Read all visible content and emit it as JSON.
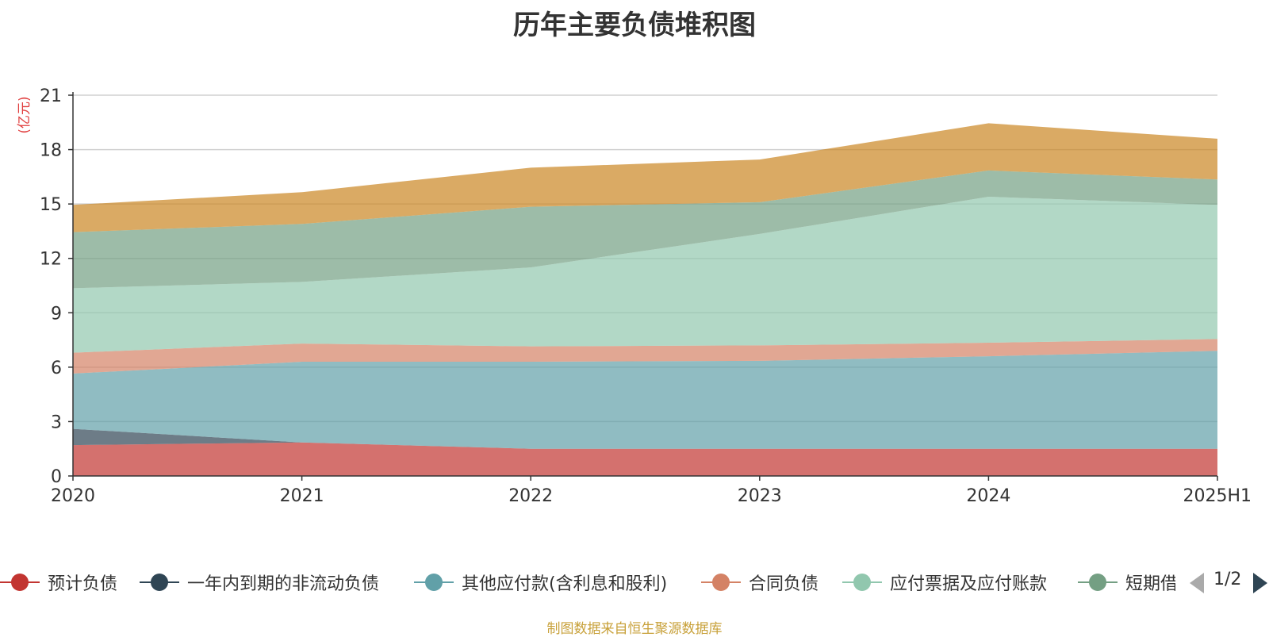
{
  "chart_data": {
    "type": "area",
    "stacked": true,
    "title": "历年主要负债堆积图",
    "ylabel": "(亿元)",
    "xlabel": "",
    "categories": [
      "2020",
      "2021",
      "2022",
      "2023",
      "2024",
      "2025H1"
    ],
    "ylim": [
      0,
      21
    ],
    "yticks": [
      "0",
      "3",
      "6",
      "9",
      "12",
      "15",
      "18",
      "21"
    ],
    "grid": true,
    "legend_position": "bottom",
    "series": [
      {
        "name": "预计负债",
        "color": "#c23531",
        "values": [
          1.7,
          1.85,
          1.5,
          1.5,
          1.5,
          1.5
        ]
      },
      {
        "name": "一年内到期的非流动负债",
        "color": "#2f4554",
        "values": [
          0.9,
          0.0,
          0.0,
          0.0,
          0.0,
          0.0
        ]
      },
      {
        "name": "其他应付款(含利息和股利)",
        "color": "#61a0a8",
        "values": [
          3.05,
          4.45,
          4.8,
          4.85,
          5.1,
          5.4
        ]
      },
      {
        "name": "合同负债",
        "color": "#d48265",
        "values": [
          1.15,
          1.0,
          0.85,
          0.85,
          0.75,
          0.65
        ]
      },
      {
        "name": "应付票据及应付账款",
        "color": "#91c7ae",
        "values": [
          3.55,
          3.4,
          4.35,
          6.15,
          8.05,
          7.4
        ]
      },
      {
        "name": "短期借款",
        "color": "#749f83",
        "values": [
          3.1,
          3.2,
          3.35,
          1.75,
          1.45,
          1.4
        ]
      },
      {
        "name": "",
        "color": "#ca8622",
        "values": [
          1.5,
          1.75,
          2.15,
          2.35,
          2.6,
          2.25
        ]
      }
    ]
  },
  "legend": {
    "page_indicator": "1/2"
  },
  "source_note": "制图数据来自恒生聚源数据库"
}
